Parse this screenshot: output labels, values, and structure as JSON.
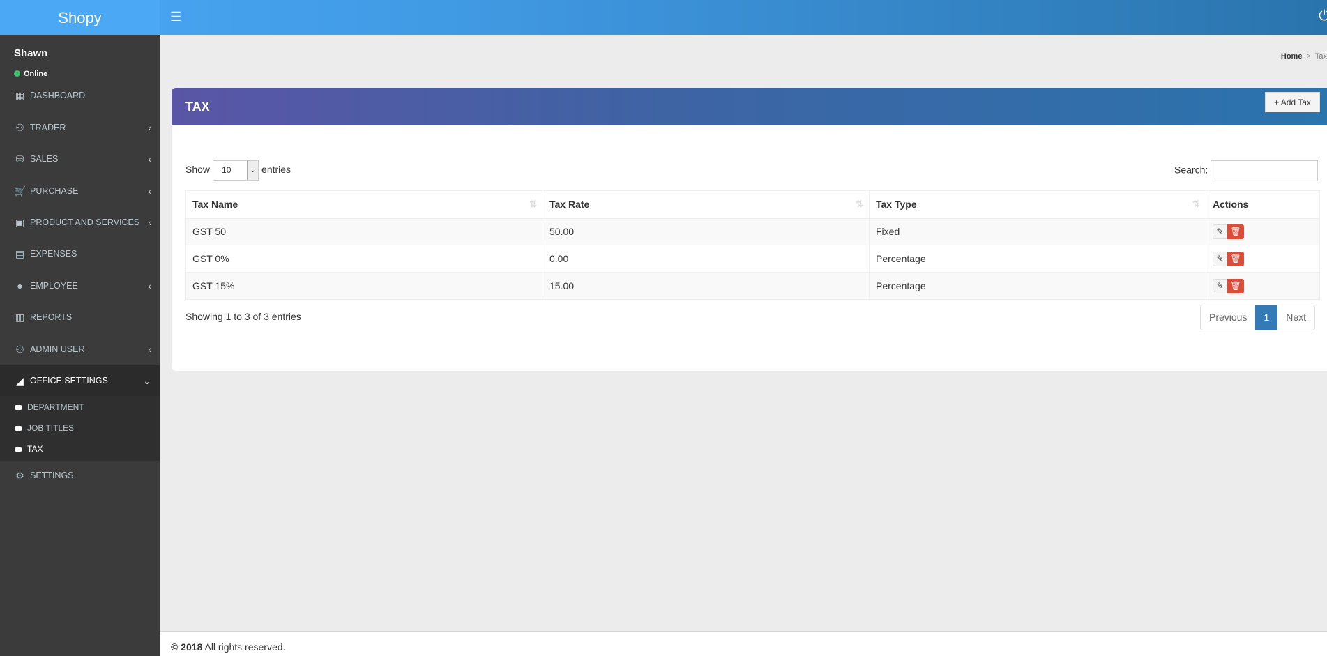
{
  "app": {
    "logo": "Shopy",
    "menu_icon": "hamburger-icon",
    "power_icon": "power-icon"
  },
  "user": {
    "name": "Shawn",
    "status": "Online",
    "status_color": "#3dc26f"
  },
  "sidebar": {
    "items": [
      {
        "label": "DASHBOARD",
        "icon": "▦"
      },
      {
        "label": "TRADER",
        "icon": "⚇"
      },
      {
        "label": "SALES",
        "icon": "⛁"
      },
      {
        "label": "PURCHASE",
        "icon": "🛒"
      },
      {
        "label": "PRODUCT AND SERVICES",
        "icon": "▣"
      },
      {
        "label": "EXPENSES",
        "icon": "▤"
      },
      {
        "label": "EMPLOYEE",
        "icon": "●"
      },
      {
        "label": "REPORTS",
        "icon": "▥"
      },
      {
        "label": "ADMIN USER",
        "icon": "⚇"
      },
      {
        "label": "OFFICE SETTINGS",
        "icon": "◢"
      },
      {
        "label": "SETTINGS",
        "icon": "⚙"
      }
    ],
    "sub": [
      "DEPARTMENT",
      "JOB TITLES",
      "TAX"
    ]
  },
  "breadcrumb": {
    "home": "Home",
    "current": "Tax"
  },
  "box": {
    "title": "TAX",
    "add_button": "+ Add Tax"
  },
  "table": {
    "show": "Show",
    "entries_value": "10",
    "entries": "entries",
    "search_label": "Search:",
    "columns": [
      "Tax Name",
      "Tax Rate",
      "Tax Type",
      "Actions"
    ],
    "rows": [
      [
        "GST 50",
        "50.00",
        "Fixed"
      ],
      [
        "GST 0%",
        "0.00",
        "Percentage"
      ],
      [
        "GST 15%",
        "15.00",
        "Percentage"
      ]
    ],
    "info": "Showing 1 to 3 of 3 entries",
    "pager": {
      "prev": "Previous",
      "page": "1",
      "next": "Next"
    }
  },
  "footer": {
    "year": "© 2018",
    "text": "All rights reserved."
  }
}
